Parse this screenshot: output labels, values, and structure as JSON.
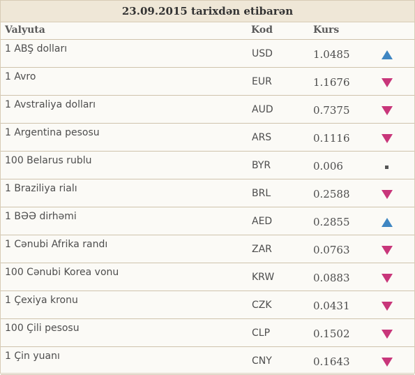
{
  "title": "23.09.2015 tarixdən etibarən",
  "headers": {
    "name": "Valyuta",
    "code": "Kod",
    "rate": "Kurs"
  },
  "colors": {
    "up": "#3f86c2",
    "down": "#c8367a",
    "neutral": "#555555"
  },
  "rows": [
    {
      "name": "1 ABŞ dolları",
      "code": "USD",
      "rate": "1.0485",
      "trend": "up"
    },
    {
      "name": "1 Avro",
      "code": "EUR",
      "rate": "1.1676",
      "trend": "down"
    },
    {
      "name": "1 Avstraliya dolları",
      "code": "AUD",
      "rate": "0.7375",
      "trend": "down"
    },
    {
      "name": "1 Argentina pesosu",
      "code": "ARS",
      "rate": "0.1116",
      "trend": "down"
    },
    {
      "name": "100 Belarus rublu",
      "code": "BYR",
      "rate": "0.006",
      "trend": "neutral"
    },
    {
      "name": "1 Braziliya rialı",
      "code": "BRL",
      "rate": "0.2588",
      "trend": "down"
    },
    {
      "name": "1 BƏƏ dirhəmi",
      "code": "AED",
      "rate": "0.2855",
      "trend": "up"
    },
    {
      "name": "1 Cənubi Afrika randı",
      "code": "ZAR",
      "rate": "0.0763",
      "trend": "down"
    },
    {
      "name": "100 Cənubi Korea vonu",
      "code": "KRW",
      "rate": "0.0883",
      "trend": "down"
    },
    {
      "name": "1 Çexiya kronu",
      "code": "CZK",
      "rate": "0.0431",
      "trend": "down"
    },
    {
      "name": "100 Çili pesosu",
      "code": "CLP",
      "rate": "0.1502",
      "trend": "down"
    },
    {
      "name": "1 Çin yuanı",
      "code": "CNY",
      "rate": "0.1643",
      "trend": "down"
    }
  ]
}
